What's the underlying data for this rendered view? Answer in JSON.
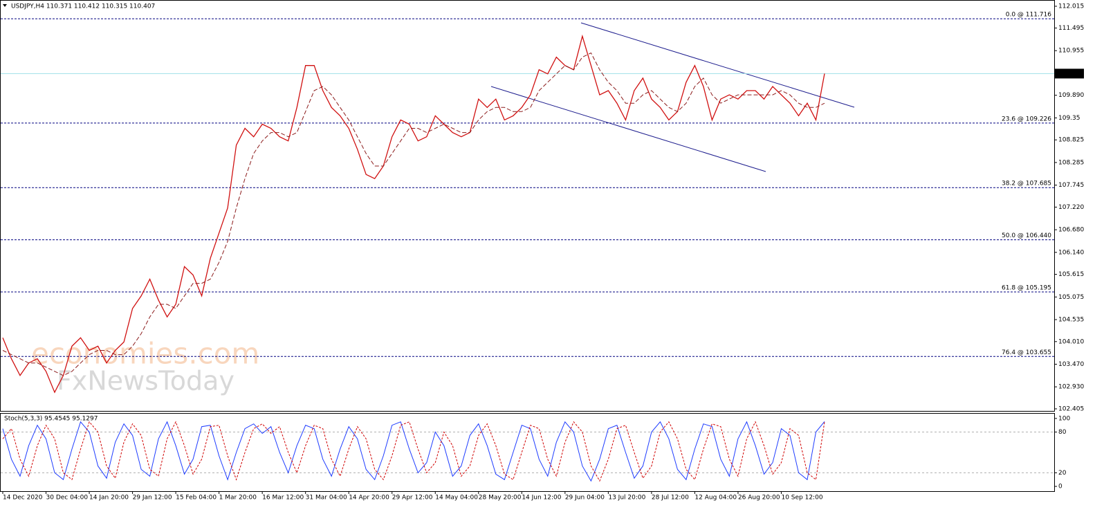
{
  "chart_data": [
    {
      "type": "line",
      "title": "USDJPY,H4  110.371 110.412 110.315 110.407",
      "watermark": [
        "economies.com",
        "FxNewsToday"
      ],
      "categories": [
        "14 Dec 2020",
        null,
        null,
        null,
        null,
        "30 Dec 04:00",
        null,
        null,
        null,
        null,
        "14 Jan 20:00",
        null,
        null,
        null,
        null,
        "29 Jan 12:00",
        null,
        null,
        null,
        null,
        "15 Feb 04:00",
        null,
        null,
        null,
        null,
        "1 Mar 20:00",
        null,
        null,
        null,
        null,
        "16 Mar 12:00",
        null,
        null,
        null,
        null,
        "31 Mar 04:00",
        null,
        null,
        null,
        null,
        "14 Apr 20:00",
        null,
        null,
        null,
        null,
        "29 Apr 12:00",
        null,
        null,
        null,
        null,
        "14 May 04:00",
        null,
        null,
        null,
        null,
        "28 May 20:00",
        null,
        null,
        null,
        null,
        "14 Jun 12:00",
        null,
        null,
        null,
        null,
        "29 Jun 04:00",
        null,
        null,
        null,
        null,
        "13 Jul 20:00",
        null,
        null,
        null,
        null,
        "28 Jul 12:00",
        null,
        null,
        null,
        null,
        "12 Aug 04:00",
        null,
        null,
        null,
        null,
        "26 Aug 20:00",
        null,
        null,
        null,
        null,
        "10 Sep 12:00",
        null,
        null,
        null,
        null,
        null
      ],
      "series": [
        {
          "color": "#d01010",
          "values": [
            104.1,
            103.6,
            103.2,
            103.5,
            103.6,
            103.3,
            102.8,
            103.2,
            103.9,
            104.1,
            103.8,
            103.9,
            103.5,
            103.8,
            104.0,
            104.8,
            105.1,
            105.5,
            105.0,
            104.6,
            104.9,
            105.8,
            105.6,
            105.1,
            106.0,
            106.6,
            107.2,
            108.7,
            109.1,
            108.9,
            109.2,
            109.1,
            108.9,
            108.8,
            109.6,
            110.6,
            110.6,
            110.0,
            109.6,
            109.4,
            109.1,
            108.6,
            108.0,
            107.9,
            108.2,
            108.9,
            109.3,
            109.2,
            108.8,
            108.9,
            109.4,
            109.2,
            109.0,
            108.9,
            109.0,
            109.8,
            109.6,
            109.8,
            109.3,
            109.4,
            109.6,
            109.9,
            110.5,
            110.4,
            110.8,
            110.6,
            110.5,
            111.3,
            110.6,
            109.9,
            110.0,
            109.7,
            109.3,
            110.0,
            110.3,
            109.8,
            109.6,
            109.3,
            109.5,
            110.2,
            110.6,
            110.1,
            109.3,
            109.8,
            109.9,
            109.8,
            110.0,
            110.0,
            109.8,
            110.1,
            109.9,
            109.7,
            109.4,
            109.7,
            109.3,
            110.407
          ]
        },
        {
          "color": "#8b1a1a",
          "values": [
            103.8,
            103.7,
            103.6,
            103.5,
            103.5,
            103.4,
            103.3,
            103.2,
            103.3,
            103.5,
            103.7,
            103.8,
            103.8,
            103.7,
            103.7,
            103.9,
            104.2,
            104.6,
            104.9,
            104.9,
            104.8,
            105.1,
            105.4,
            105.4,
            105.5,
            105.9,
            106.4,
            107.2,
            107.9,
            108.5,
            108.8,
            109.0,
            109.0,
            108.9,
            109.0,
            109.5,
            110.0,
            110.1,
            109.9,
            109.6,
            109.3,
            108.9,
            108.5,
            108.2,
            108.2,
            108.5,
            108.8,
            109.1,
            109.1,
            109.0,
            109.1,
            109.2,
            109.1,
            109.0,
            109.0,
            109.3,
            109.5,
            109.6,
            109.6,
            109.5,
            109.5,
            109.6,
            110.0,
            110.2,
            110.4,
            110.6,
            110.5,
            110.8,
            110.9,
            110.5,
            110.2,
            110.0,
            109.7,
            109.7,
            109.9,
            110.0,
            109.8,
            109.6,
            109.5,
            109.7,
            110.1,
            110.3,
            109.9,
            109.7,
            109.8,
            109.9,
            109.9,
            109.9,
            109.9,
            109.9,
            110.0,
            109.9,
            109.7,
            109.6,
            109.6,
            109.7
          ]
        }
      ],
      "levels": [
        {
          "value": 111.716,
          "label": "0.0 @ 111.716"
        },
        {
          "value": 109.226,
          "label": "23.6 @ 109.226"
        },
        {
          "value": 107.685,
          "label": "38.2 @ 107.685"
        },
        {
          "value": 106.44,
          "label": "50.0 @ 106.440"
        },
        {
          "value": 105.195,
          "label": "61.8 @ 105.195"
        },
        {
          "value": 103.655,
          "label": "76.4 @ 103.655"
        }
      ],
      "level_color": "#000080",
      "current_color": "#9fe0e8",
      "ylim": [
        102.355,
        112.131
      ],
      "yticks": [
        112.015,
        111.495,
        110.955,
        {
          "value": 109.89,
          "label": "109.890"
        },
        109.35,
        108.825,
        108.285,
        107.745,
        {
          "value": 107.22,
          "label": "107.220"
        },
        {
          "value": 106.68,
          "label": "106.680"
        },
        {
          "value": 106.14,
          "label": "106.140"
        },
        105.615,
        105.075,
        104.535,
        {
          "value": 104.01,
          "label": "104.010"
        },
        {
          "value": 103.47,
          "label": "103.470"
        },
        {
          "value": 102.93,
          "label": "102.930"
        },
        102.405
      ]
    },
    {
      "type": "line",
      "title": "Stoch(5,3,3) 95.4545 95.1297",
      "series": [
        {
          "color": "#1e3cff",
          "values": [
            85,
            40,
            15,
            60,
            90,
            70,
            20,
            10,
            55,
            95,
            80,
            30,
            12,
            65,
            92,
            75,
            25,
            15,
            70,
            95,
            60,
            18,
            40,
            88,
            90,
            45,
            10,
            50,
            85,
            92,
            78,
            88,
            50,
            20,
            60,
            90,
            85,
            40,
            15,
            55,
            88,
            70,
            25,
            10,
            45,
            90,
            95,
            55,
            20,
            35,
            80,
            60,
            15,
            30,
            75,
            92,
            60,
            18,
            10,
            50,
            90,
            85,
            40,
            15,
            65,
            95,
            80,
            30,
            8,
            40,
            85,
            90,
            50,
            12,
            30,
            80,
            95,
            70,
            25,
            10,
            55,
            92,
            88,
            40,
            15,
            70,
            95,
            60,
            18,
            35,
            85,
            75,
            20,
            10,
            80,
            95.4545
          ]
        },
        {
          "color": "#d00000",
          "values": [
            70,
            85,
            40,
            15,
            60,
            90,
            70,
            20,
            10,
            55,
            95,
            80,
            30,
            12,
            65,
            92,
            75,
            25,
            15,
            70,
            95,
            60,
            18,
            40,
            88,
            90,
            45,
            10,
            50,
            85,
            92,
            78,
            88,
            50,
            20,
            60,
            90,
            85,
            40,
            15,
            55,
            88,
            70,
            25,
            10,
            45,
            90,
            95,
            55,
            20,
            35,
            80,
            60,
            15,
            30,
            75,
            92,
            60,
            18,
            10,
            50,
            90,
            85,
            40,
            15,
            65,
            95,
            80,
            30,
            8,
            40,
            85,
            90,
            50,
            12,
            30,
            80,
            95,
            70,
            25,
            10,
            55,
            92,
            88,
            40,
            15,
            70,
            95,
            60,
            18,
            35,
            85,
            75,
            20,
            10,
            95.1297
          ]
        }
      ],
      "ylim": [
        -5,
        107
      ],
      "yticks": [
        0,
        20,
        80,
        100
      ]
    }
  ]
}
